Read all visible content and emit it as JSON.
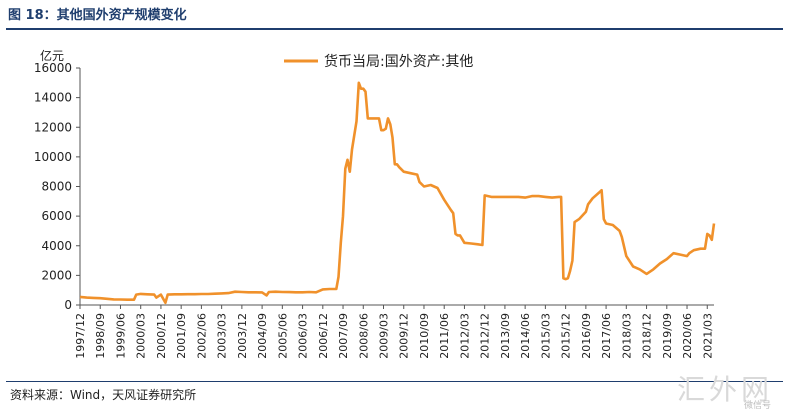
{
  "header": {
    "title": "图 18：其他国外资产规模变化"
  },
  "footer": {
    "source": "资料来源：Wind，天风证券研究所"
  },
  "watermark": {
    "main": "汇外网",
    "sub": "微信号"
  },
  "chart_data": {
    "type": "line",
    "title": "",
    "xlabel": "",
    "ylabel": "亿元",
    "ylim": [
      0,
      16000
    ],
    "yticks": [
      0,
      2000,
      4000,
      6000,
      8000,
      10000,
      12000,
      14000,
      16000
    ],
    "xticks": [
      "1997/12",
      "1998/09",
      "1999/06",
      "2000/03",
      "2000/12",
      "2001/09",
      "2002/06",
      "2003/03",
      "2003/12",
      "2004/09",
      "2005/06",
      "2006/03",
      "2006/12",
      "2007/09",
      "2008/06",
      "2009/03",
      "2009/12",
      "2010/09",
      "2011/06",
      "2012/03",
      "2012/12",
      "2013/09",
      "2014/06",
      "2015/03",
      "2015/12",
      "2016/09",
      "2017/06",
      "2018/03",
      "2018/12",
      "2019/09",
      "2020/06",
      "2021/03"
    ],
    "legend": "top-center",
    "grid": false,
    "color": "#f0912b",
    "series": [
      {
        "name": "货币当局:国外资产:其他",
        "points": [
          [
            "1997/12",
            550
          ],
          [
            "1998/03",
            500
          ],
          [
            "1998/06",
            480
          ],
          [
            "1998/09",
            460
          ],
          [
            "1998/12",
            420
          ],
          [
            "1999/03",
            380
          ],
          [
            "1999/06",
            370
          ],
          [
            "1999/09",
            360
          ],
          [
            "1999/12",
            360
          ],
          [
            "2000/01",
            700
          ],
          [
            "2000/03",
            750
          ],
          [
            "2000/06",
            720
          ],
          [
            "2000/09",
            700
          ],
          [
            "2000/10",
            500
          ],
          [
            "2000/12",
            700
          ],
          [
            "2001/02",
            150
          ],
          [
            "2001/03",
            700
          ],
          [
            "2001/06",
            720
          ],
          [
            "2001/09",
            720
          ],
          [
            "2001/12",
            730
          ],
          [
            "2002/03",
            730
          ],
          [
            "2002/06",
            740
          ],
          [
            "2002/09",
            740
          ],
          [
            "2002/12",
            760
          ],
          [
            "2003/03",
            780
          ],
          [
            "2003/06",
            800
          ],
          [
            "2003/09",
            900
          ],
          [
            "2003/12",
            880
          ],
          [
            "2004/03",
            860
          ],
          [
            "2004/06",
            860
          ],
          [
            "2004/09",
            850
          ],
          [
            "2004/11",
            650
          ],
          [
            "2004/12",
            880
          ],
          [
            "2005/03",
            900
          ],
          [
            "2005/06",
            880
          ],
          [
            "2005/09",
            870
          ],
          [
            "2005/12",
            860
          ],
          [
            "2006/03",
            860
          ],
          [
            "2006/06",
            880
          ],
          [
            "2006/09",
            860
          ],
          [
            "2006/12",
            1050
          ],
          [
            "2007/03",
            1080
          ],
          [
            "2007/06",
            1080
          ],
          [
            "2007/07",
            1900
          ],
          [
            "2007/08",
            4200
          ],
          [
            "2007/09",
            6000
          ],
          [
            "2007/10",
            9200
          ],
          [
            "2007/11",
            9800
          ],
          [
            "2007/12",
            9000
          ],
          [
            "2008/01",
            10500
          ],
          [
            "2008/03",
            12400
          ],
          [
            "2008/04",
            15000
          ],
          [
            "2008/05",
            14600
          ],
          [
            "2008/06",
            14600
          ],
          [
            "2008/07",
            14400
          ],
          [
            "2008/08",
            12600
          ],
          [
            "2008/09",
            12600
          ],
          [
            "2008/12",
            12600
          ],
          [
            "2009/01",
            12600
          ],
          [
            "2009/02",
            11800
          ],
          [
            "2009/03",
            11800
          ],
          [
            "2009/04",
            11900
          ],
          [
            "2009/05",
            12600
          ],
          [
            "2009/06",
            12200
          ],
          [
            "2009/07",
            11300
          ],
          [
            "2009/08",
            9500
          ],
          [
            "2009/09",
            9500
          ],
          [
            "2009/10",
            9300
          ],
          [
            "2009/12",
            9000
          ],
          [
            "2010/03",
            8900
          ],
          [
            "2010/06",
            8800
          ],
          [
            "2010/07",
            8300
          ],
          [
            "2010/09",
            8000
          ],
          [
            "2010/12",
            8100
          ],
          [
            "2011/03",
            7900
          ],
          [
            "2011/06",
            7100
          ],
          [
            "2011/09",
            6400
          ],
          [
            "2011/10",
            6200
          ],
          [
            "2011/11",
            4800
          ],
          [
            "2011/12",
            4700
          ],
          [
            "2012/01",
            4700
          ],
          [
            "2012/03",
            4200
          ],
          [
            "2012/06",
            4150
          ],
          [
            "2012/09",
            4100
          ],
          [
            "2012/11",
            4050
          ],
          [
            "2012/12",
            7400
          ],
          [
            "2013/03",
            7300
          ],
          [
            "2013/06",
            7300
          ],
          [
            "2013/09",
            7300
          ],
          [
            "2013/12",
            7300
          ],
          [
            "2014/03",
            7300
          ],
          [
            "2014/06",
            7250
          ],
          [
            "2014/09",
            7350
          ],
          [
            "2014/12",
            7350
          ],
          [
            "2015/03",
            7300
          ],
          [
            "2015/06",
            7250
          ],
          [
            "2015/09",
            7300
          ],
          [
            "2015/10",
            7300
          ],
          [
            "2015/11",
            1800
          ],
          [
            "2015/12",
            1750
          ],
          [
            "2016/01",
            1800
          ],
          [
            "2016/02",
            2300
          ],
          [
            "2016/03",
            3000
          ],
          [
            "2016/04",
            5600
          ],
          [
            "2016/06",
            5800
          ],
          [
            "2016/09",
            6300
          ],
          [
            "2016/10",
            6800
          ],
          [
            "2016/12",
            7200
          ],
          [
            "2017/03",
            7600
          ],
          [
            "2017/04",
            7750
          ],
          [
            "2017/05",
            5800
          ],
          [
            "2017/06",
            5500
          ],
          [
            "2017/09",
            5400
          ],
          [
            "2017/12",
            5000
          ],
          [
            "2018/01",
            4600
          ],
          [
            "2018/03",
            3300
          ],
          [
            "2018/06",
            2600
          ],
          [
            "2018/09",
            2400
          ],
          [
            "2018/12",
            2100
          ],
          [
            "2019/03",
            2400
          ],
          [
            "2019/06",
            2800
          ],
          [
            "2019/09",
            3100
          ],
          [
            "2019/12",
            3500
          ],
          [
            "2020/03",
            3400
          ],
          [
            "2020/06",
            3300
          ],
          [
            "2020/07",
            3500
          ],
          [
            "2020/09",
            3700
          ],
          [
            "2020/12",
            3800
          ],
          [
            "2021/02",
            3800
          ],
          [
            "2021/03",
            4800
          ],
          [
            "2021/04",
            4700
          ],
          [
            "2021/05",
            4400
          ],
          [
            "2021/06",
            5500
          ]
        ]
      }
    ]
  }
}
